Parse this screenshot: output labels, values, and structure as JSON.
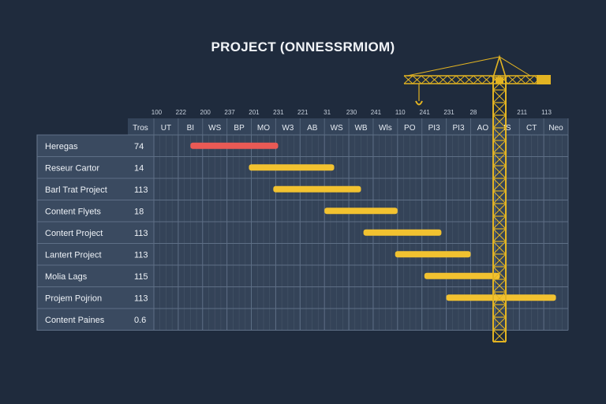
{
  "colors": {
    "background": "#1f2b3d",
    "panel": "#3a4a60",
    "grid": "#56667c",
    "bar": "#f2c230",
    "bar_highlight": "#ea5a55",
    "crane": "#e3b422"
  },
  "chart_data": {
    "type": "gantt",
    "title": "PROJECT (ONNESSRMIOM)",
    "grid": true,
    "header_first_col": "Tros",
    "top_ticks": [
      "100",
      "222",
      "200",
      "237",
      "201",
      "231",
      "221",
      "31",
      "230",
      "241",
      "110",
      "241",
      "231",
      "28",
      "",
      "211",
      "113"
    ],
    "column_labels": [
      "UT",
      "BI",
      "WS",
      "BP",
      "MO",
      "W3",
      "AB",
      "WS",
      "WB",
      "Wls",
      "PO",
      "PI3",
      "PI3",
      "AO",
      "IS",
      "CT",
      "Neo"
    ],
    "rows": [
      {
        "name": "Heregas",
        "value": "74",
        "start": 1.5,
        "end": 5.1,
        "highlight": true
      },
      {
        "name": "Reseur Cartor",
        "value": "14",
        "start": 3.9,
        "end": 7.4,
        "highlight": false
      },
      {
        "name": "Barl Trat Project",
        "value": "113",
        "start": 4.9,
        "end": 8.5,
        "highlight": false
      },
      {
        "name": "Content Flyets",
        "value": "18",
        "start": 7.0,
        "end": 10.0,
        "highlight": false
      },
      {
        "name": "Contert Project",
        "value": "113",
        "start": 8.6,
        "end": 11.8,
        "highlight": false
      },
      {
        "name": "Lantert Project",
        "value": "113",
        "start": 9.9,
        "end": 13.0,
        "highlight": false
      },
      {
        "name": "Molia Lags",
        "value": "115",
        "start": 11.1,
        "end": 14.2,
        "highlight": false
      },
      {
        "name": "Projem Pojrion",
        "value": "113",
        "start": 12.0,
        "end": 16.5,
        "highlight": false
      },
      {
        "name": "Content Paines",
        "value": "0.6",
        "start": null,
        "end": null,
        "highlight": false
      }
    ]
  }
}
